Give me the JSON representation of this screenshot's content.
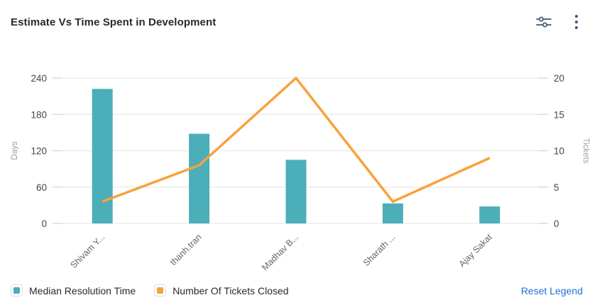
{
  "header": {
    "title": "Estimate Vs Time Spent in Development",
    "icons": [
      {
        "name": "filter-settings-icon"
      },
      {
        "name": "kebab-menu-icon"
      }
    ]
  },
  "legend": {
    "reset_label": "Reset Legend"
  },
  "colors": {
    "bar": "#4BAEB9",
    "line": "#F9A23B",
    "link": "#1D6FD8",
    "grid": "#EDEDED",
    "tick": "#D8D8D8",
    "tick_text": "#44474D",
    "axis_name_text": "#9AA0A6",
    "x_label_text": "#63666B",
    "icon": "#44546F"
  },
  "chart_data": {
    "type": "combo",
    "title": "Estimate Vs Time Spent in Development",
    "categories": [
      "Shivam Y...",
      "thanh.tran",
      "Madhav B...",
      "Sharath ...",
      "Ajay Sakat"
    ],
    "series": [
      {
        "name": "Median Resolution Time",
        "type": "bar",
        "yaxis": "left",
        "color": "#4BAEB9",
        "values": [
          222,
          148,
          105,
          33,
          28
        ]
      },
      {
        "name": "Number Of Tickets Closed",
        "type": "line",
        "yaxis": "right",
        "color": "#F9A23B",
        "values": [
          3,
          8,
          20,
          3,
          9
        ]
      }
    ],
    "left_axis": {
      "label": "Days",
      "min": 0,
      "max": 240,
      "ticks": [
        0,
        60,
        120,
        180,
        240
      ]
    },
    "right_axis": {
      "label": "Tickets",
      "min": 0,
      "max": 20,
      "ticks": [
        0,
        5,
        10,
        15,
        20
      ]
    },
    "grid": true,
    "legend_position": "bottom",
    "x_label_rotation": -45
  }
}
